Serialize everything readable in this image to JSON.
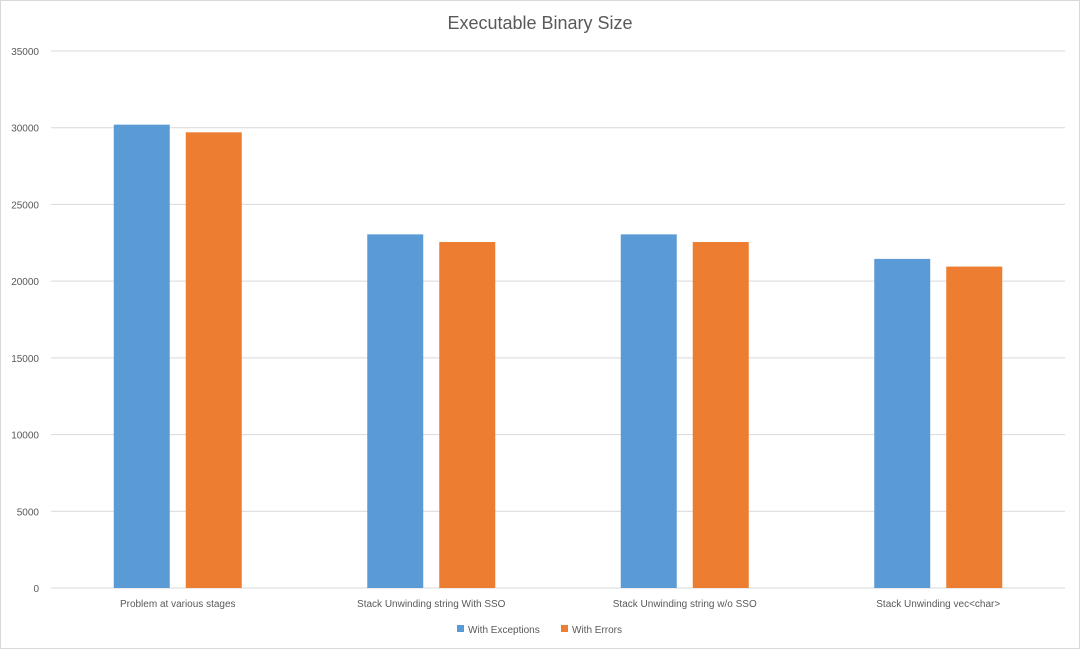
{
  "chart_data": {
    "type": "bar",
    "title": "Executable Binary Size",
    "xlabel": "",
    "ylabel": "",
    "categories": [
      "Problem at various stages",
      "Stack Unwinding string With SSO",
      "Stack Unwinding string w/o SSO",
      "Stack Unwinding vec<char>"
    ],
    "series": [
      {
        "name": "With Exceptions",
        "color": "#5b9bd5",
        "values": [
          30200,
          23050,
          23050,
          21450
        ]
      },
      {
        "name": "With Errors",
        "color": "#ed7d31",
        "values": [
          29700,
          22550,
          22550,
          20950
        ]
      }
    ],
    "ylim": [
      0,
      35000
    ],
    "yticks": [
      0,
      5000,
      10000,
      15000,
      20000,
      25000,
      30000,
      35000
    ],
    "grid": true,
    "legend_position": "bottom"
  }
}
